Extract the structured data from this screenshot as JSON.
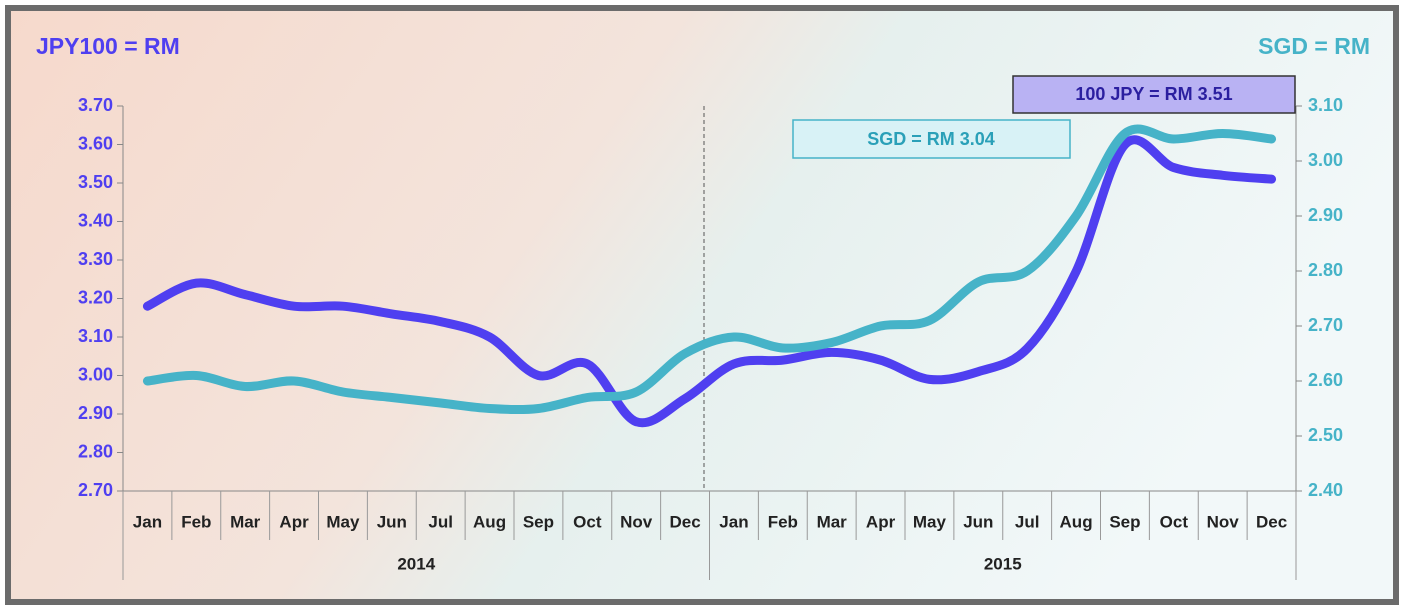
{
  "chart_data": {
    "type": "line",
    "y_axis_title": "JPY100 = RM",
    "y2_axis_title": "SGD = RM",
    "categories": [
      "Jan",
      "Feb",
      "Mar",
      "Apr",
      "May",
      "Jun",
      "Jul",
      "Aug",
      "Sep",
      "Oct",
      "Nov",
      "Dec",
      "Jan",
      "Feb",
      "Mar",
      "Apr",
      "May",
      "Jun",
      "Jul",
      "Aug",
      "Sep",
      "Oct",
      "Nov",
      "Dec"
    ],
    "category_groups": [
      "2014",
      "2015"
    ],
    "series": [
      {
        "name": "JPY100 = RM",
        "color": "#4f3ff0",
        "axis": "y",
        "values": [
          3.18,
          3.24,
          3.21,
          3.18,
          3.18,
          3.16,
          3.14,
          3.1,
          3.0,
          3.03,
          2.88,
          2.94,
          3.03,
          3.04,
          3.06,
          3.04,
          2.99,
          3.01,
          3.07,
          3.27,
          3.6,
          3.54,
          3.52,
          3.51
        ]
      },
      {
        "name": "SGD = RM",
        "color": "#46b3c8",
        "axis": "y2",
        "values": [
          2.6,
          2.61,
          2.59,
          2.6,
          2.58,
          2.57,
          2.56,
          2.55,
          2.55,
          2.57,
          2.58,
          2.65,
          2.68,
          2.66,
          2.67,
          2.7,
          2.71,
          2.78,
          2.8,
          2.9,
          3.05,
          3.04,
          3.05,
          3.04
        ]
      }
    ],
    "annotations": [
      "100 JPY = RM 3.51",
      "SGD = RM 3.04"
    ],
    "ylim": [
      2.7,
      3.7
    ],
    "yticks": [
      {
        "value": 2.7,
        "label": "2.70"
      },
      {
        "value": 2.8,
        "label": "2.80"
      },
      {
        "value": 2.9,
        "label": "2.90"
      },
      {
        "value": 3.0,
        "label": "3.00"
      },
      {
        "value": 3.1,
        "label": "3.10"
      },
      {
        "value": 3.2,
        "label": "3.20"
      },
      {
        "value": 3.3,
        "label": "3.30"
      },
      {
        "value": 3.4,
        "label": "3.40"
      },
      {
        "value": 3.5,
        "label": "3.50"
      },
      {
        "value": 3.6,
        "label": "3.60"
      },
      {
        "value": 3.7,
        "label": "3.70"
      }
    ],
    "y2lim": [
      2.4,
      3.1
    ],
    "y2ticks": [
      {
        "value": 2.4,
        "label": "2.40"
      },
      {
        "value": 2.5,
        "label": "2.50"
      },
      {
        "value": 2.6,
        "label": "2.60"
      },
      {
        "value": 2.7,
        "label": "2.70"
      },
      {
        "value": 2.8,
        "label": "2.80"
      },
      {
        "value": 2.9,
        "label": "2.90"
      },
      {
        "value": 3.0,
        "label": "3.00"
      },
      {
        "value": 3.1,
        "label": "3.10"
      }
    ]
  }
}
